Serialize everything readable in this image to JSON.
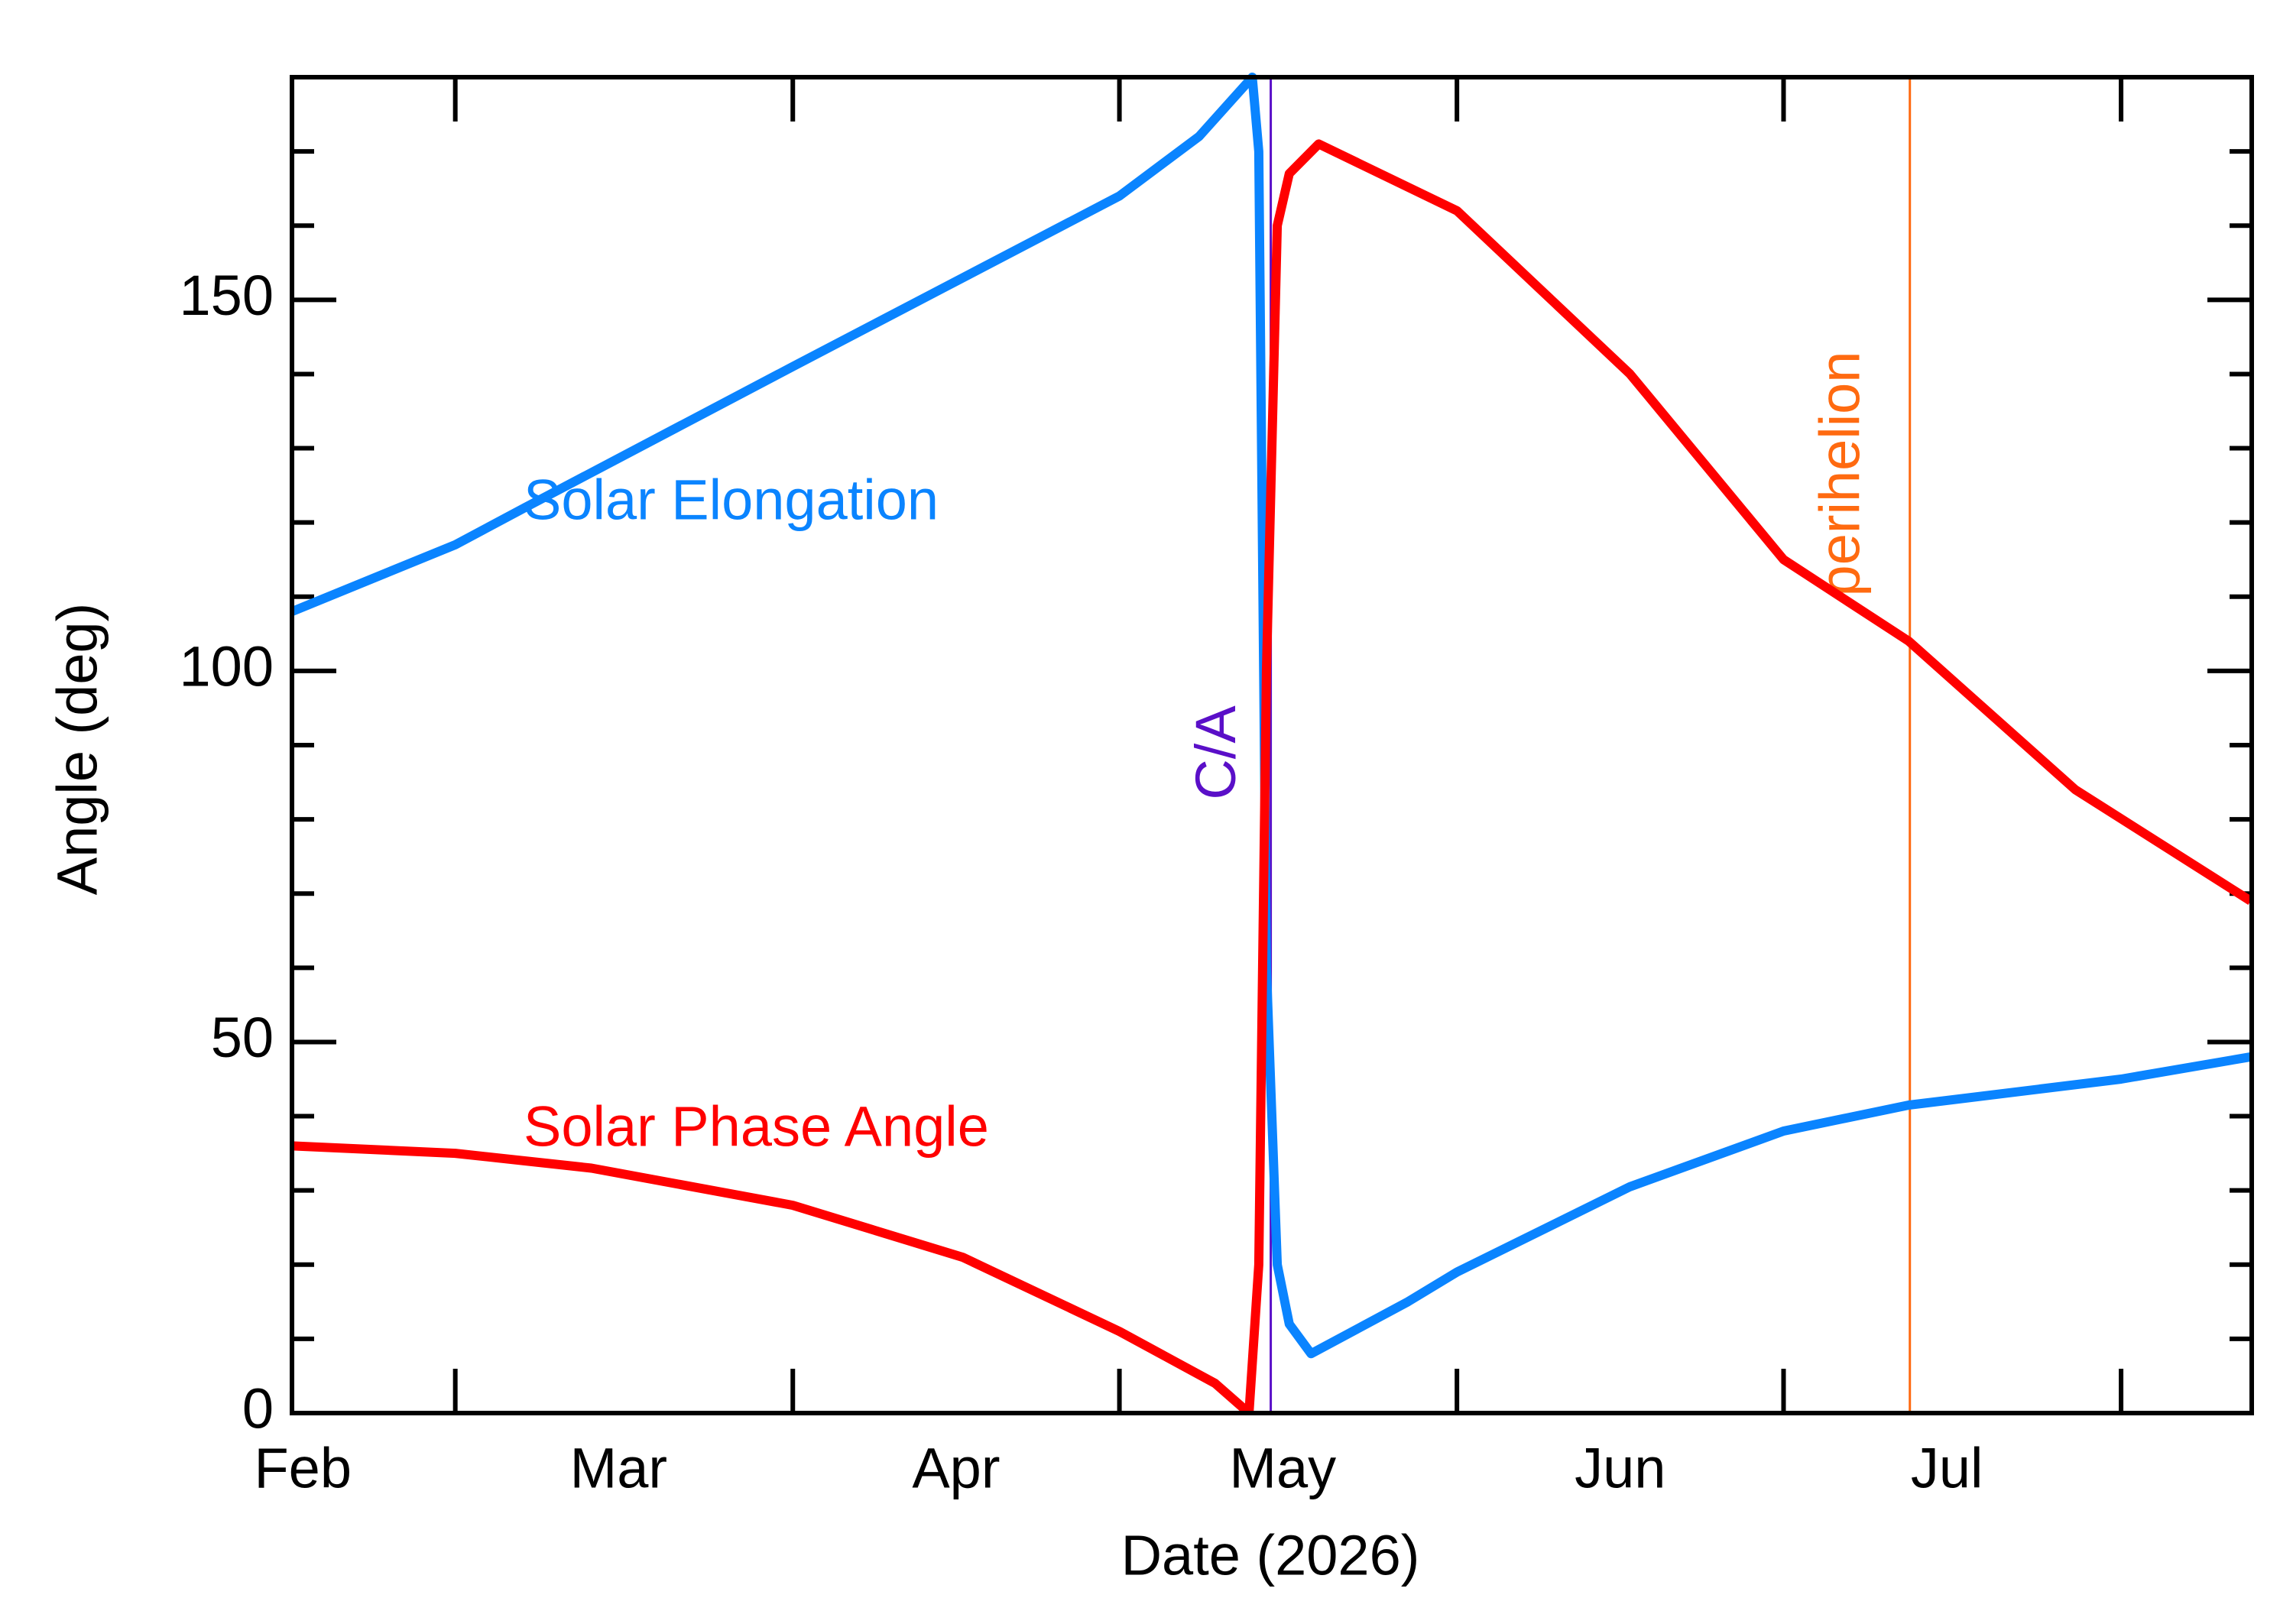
{
  "chart_data": {
    "type": "line",
    "xlabel": "Date (2026)",
    "ylabel": "Angle (deg)",
    "xlim": [
      45,
      225
    ],
    "xticks": [
      {
        "value": 46,
        "label": "Feb"
      },
      {
        "value": 75,
        "label": "Mar"
      },
      {
        "value": 106,
        "label": "Apr"
      },
      {
        "value": 136,
        "label": "May"
      },
      {
        "value": 167,
        "label": "Jun"
      },
      {
        "value": 197,
        "label": "Jul"
      }
    ],
    "xtick_marks": [
      60,
      91,
      121,
      152,
      182,
      213
    ],
    "ylim": [
      0,
      180
    ],
    "yticks": [
      0,
      50,
      100,
      150
    ],
    "yminor_ticks": [
      10,
      20,
      30,
      40,
      60,
      70,
      80,
      90,
      110,
      120,
      130,
      140,
      160,
      170,
      180
    ],
    "series": [
      {
        "name": "Solar Elongation",
        "color": "#0a84ff",
        "x": [
          45,
          60,
          66.4,
          91,
          121,
          128.3,
          133.2,
          133.8,
          134.5,
          135.5,
          136.6,
          138.6,
          147.5,
          152,
          167.9,
          182,
          193.5,
          213,
          224.9
        ],
        "values": [
          108,
          117,
          122,
          141,
          164,
          172,
          180,
          170,
          60,
          20,
          12,
          8,
          15,
          19,
          30.5,
          38,
          41.5,
          45,
          48
        ]
      },
      {
        "name": "Solar Phase Angle",
        "color": "#ff0000",
        "x": [
          45,
          60,
          72.5,
          91,
          106.6,
          121,
          129.8,
          132.9,
          133.8,
          134.5,
          135.5,
          136.6,
          139.3,
          152,
          167.9,
          182,
          193.5,
          208.8,
          224.9
        ],
        "values": [
          36,
          35,
          33,
          28,
          21,
          11,
          4,
          0,
          20,
          100,
          160,
          167,
          171,
          162,
          140,
          115,
          104,
          84,
          69
        ]
      }
    ],
    "vlines": [
      {
        "x": 134.9,
        "label": "C/A",
        "color": "#5a0fc8"
      },
      {
        "x": 193.6,
        "label": "perihelion",
        "color": "#ff6a10"
      }
    ]
  }
}
